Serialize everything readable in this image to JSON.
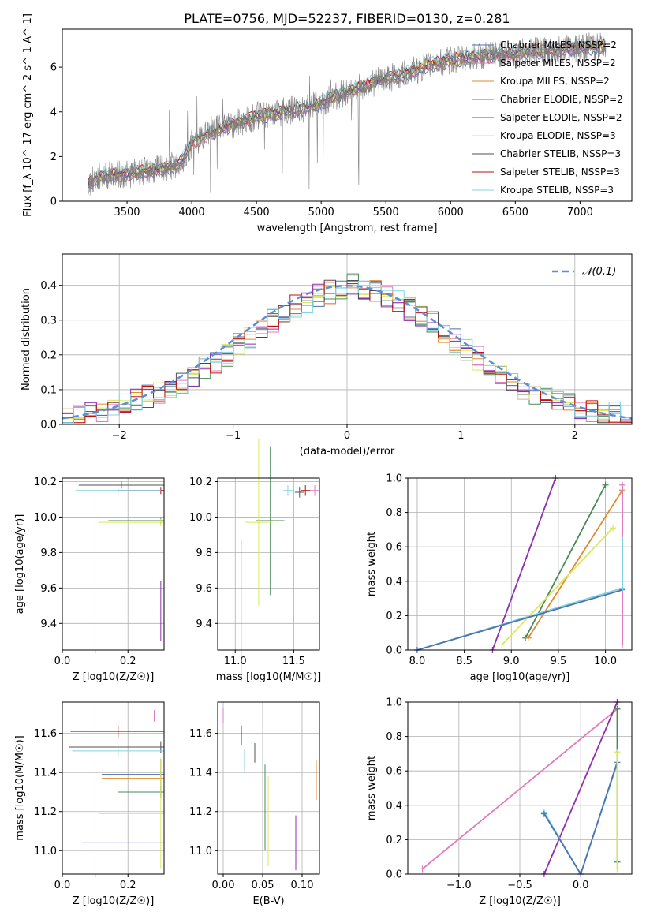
{
  "figure_title": "PLATE=0756, MJD=52237, FIBERID=0130, z=0.281",
  "colors": {
    "chabrier_miles": "#4c72b0",
    "salpeter_miles": "#e07bbf",
    "kroupa_miles": "#e08a30",
    "chabrier_elodie": "#4a8a5a",
    "salpeter_elodie": "#8e2fb0",
    "kroupa_elodie": "#d9e85a",
    "chabrier_stelib": "#505050",
    "salpeter_stelib": "#c01010",
    "kroupa_stelib": "#80d4e0",
    "data": "#808080",
    "normal": "#5b8ddb"
  },
  "chart_data": [
    {
      "type": "line",
      "xlabel": "wavelength [Angstrom, rest frame]",
      "ylabel": "Flux [f_λ 10^-17 erg cm^-2 s^-1 A^-1]",
      "xlim": [
        3000,
        7400
      ],
      "ylim": [
        0,
        7.7
      ],
      "xticks": [
        3500,
        4000,
        4500,
        5000,
        5500,
        6000,
        6500,
        7000
      ],
      "yticks": [
        0,
        2,
        4,
        6
      ],
      "legend_position": "top-right",
      "spectrum_x": [
        3200,
        3300,
        3400,
        3500,
        3600,
        3700,
        3800,
        3900,
        4000,
        4100,
        4200,
        4300,
        4400,
        4500,
        4600,
        4700,
        4800,
        4900,
        5000,
        5100,
        5200,
        5300,
        5400,
        5500,
        5600,
        5700,
        5800,
        5900,
        6000,
        6100,
        6200,
        6300,
        6400,
        6500,
        6600,
        6700,
        6800,
        6900,
        7000,
        7100,
        7200
      ],
      "spectrum_y": [
        0.8,
        1.1,
        1.2,
        1.2,
        1.3,
        1.4,
        1.5,
        1.6,
        2.6,
        2.9,
        3.2,
        3.4,
        3.6,
        3.8,
        3.9,
        4.0,
        4.1,
        4.2,
        4.4,
        4.7,
        4.9,
        5.1,
        5.3,
        5.5,
        5.6,
        5.8,
        6.0,
        6.2,
        6.3,
        6.4,
        6.5,
        6.5,
        6.6,
        6.6,
        6.7,
        6.7,
        6.8,
        6.8,
        6.9,
        6.9,
        7.0
      ],
      "series": [
        {
          "name": "Chabrier MILES, N_SSP=2",
          "color_key": "chabrier_miles"
        },
        {
          "name": "Salpeter MILES, N_SSP=2",
          "color_key": "salpeter_miles"
        },
        {
          "name": "Kroupa MILES, N_SSP=2",
          "color_key": "kroupa_miles"
        },
        {
          "name": "Chabrier ELODIE, N_SSP=2",
          "color_key": "chabrier_elodie"
        },
        {
          "name": "Salpeter ELODIE, N_SSP=2",
          "color_key": "salpeter_elodie"
        },
        {
          "name": "Kroupa ELODIE, N_SSP=3",
          "color_key": "kroupa_elodie"
        },
        {
          "name": "Chabrier STELIB, N_SSP=3",
          "color_key": "chabrier_stelib"
        },
        {
          "name": "Salpeter STELIB, N_SSP=3",
          "color_key": "salpeter_stelib"
        },
        {
          "name": "Kroupa STELIB, N_SSP=3",
          "color_key": "kroupa_stelib"
        }
      ]
    },
    {
      "type": "line",
      "xlabel": "(data-model)/error",
      "ylabel": "Normed distribution",
      "xlim": [
        -2.5,
        2.5
      ],
      "ylim": [
        0,
        0.49
      ],
      "xticks": [
        -2,
        -1,
        0,
        1,
        2
      ],
      "yticks": [
        0.0,
        0.1,
        0.2,
        0.3,
        0.4
      ],
      "legend": "𝒩(0,1)",
      "legend_position": "top-right",
      "hist_edges_step": 0.1,
      "hist_base": [
        0.02,
        0.03,
        0.04,
        0.04,
        0.05,
        0.06,
        0.07,
        0.08,
        0.09,
        0.1,
        0.12,
        0.14,
        0.16,
        0.18,
        0.2,
        0.23,
        0.25,
        0.27,
        0.3,
        0.32,
        0.34,
        0.35,
        0.37,
        0.38,
        0.39,
        0.4,
        0.39,
        0.38,
        0.37,
        0.35,
        0.33,
        0.31,
        0.29,
        0.26,
        0.24,
        0.21,
        0.19,
        0.16,
        0.14,
        0.12,
        0.1,
        0.09,
        0.08,
        0.07,
        0.06,
        0.05,
        0.04,
        0.03,
        0.03,
        0.02
      ]
    },
    {
      "type": "scatter",
      "xlabel": "Z [log10(Z/Z☉)]",
      "ylabel": "age [log10(age/yr)]",
      "xlim": [
        0.0,
        0.31
      ],
      "ylim": [
        9.25,
        10.22
      ],
      "xticks": [
        0.0,
        0.1,
        0.2
      ],
      "xtick_labels": [
        "0.0",
        "",
        "0.2"
      ],
      "yticks": [
        9.4,
        9.6,
        9.8,
        10.0,
        10.2
      ],
      "points": [
        {
          "key": "chabrier_stelib",
          "x": 0.18,
          "y": 10.18
        },
        {
          "key": "salpeter_stelib",
          "x": 0.3,
          "y": 10.15
        },
        {
          "key": "kroupa_stelib",
          "x": 0.17,
          "y": 10.15
        },
        {
          "key": "chabrier_elodie",
          "x": 0.3,
          "y": 9.98
        },
        {
          "key": "kroupa_elodie",
          "x": 0.3,
          "y": 9.97
        },
        {
          "key": "salpeter_elodie",
          "x": 0.3,
          "y": 9.47
        }
      ]
    },
    {
      "type": "scatter",
      "xlabel": "mass [log10(M/M☉)]",
      "ylabel": "",
      "xlim": [
        10.85,
        11.72
      ],
      "ylim": [
        9.25,
        10.22
      ],
      "xticks": [
        11.0,
        11.5
      ],
      "yticks": [
        9.4,
        9.6,
        9.8,
        10.0,
        10.2
      ],
      "points": [
        {
          "key": "salpeter_stelib",
          "x": 11.6,
          "y": 10.15
        },
        {
          "key": "salpeter_miles",
          "x": 11.68,
          "y": 10.15
        },
        {
          "key": "chabrier_stelib",
          "x": 11.55,
          "y": 10.14
        },
        {
          "key": "kroupa_stelib",
          "x": 11.45,
          "y": 10.15
        },
        {
          "key": "chabrier_elodie",
          "x": 11.3,
          "y": 9.98
        },
        {
          "key": "kroupa_elodie",
          "x": 11.2,
          "y": 9.97
        },
        {
          "key": "salpeter_elodie",
          "x": 11.05,
          "y": 9.47
        }
      ]
    },
    {
      "type": "line",
      "xlabel": "age [log10(age/yr)]",
      "ylabel": "mass weight",
      "xlim": [
        7.9,
        10.28
      ],
      "ylim": [
        0,
        1
      ],
      "xticks": [
        8.0,
        8.5,
        9.0,
        9.5,
        10.0
      ],
      "yticks": [
        0.0,
        0.2,
        0.4,
        0.6,
        0.8,
        1.0
      ],
      "lines": [
        {
          "key": "salpeter_elodie",
          "x": [
            8.8,
            9.47
          ],
          "y": [
            0.0,
            1.0
          ]
        },
        {
          "key": "chabrier_elodie",
          "x": [
            9.15,
            10.0
          ],
          "y": [
            0.07,
            0.96
          ]
        },
        {
          "key": "kroupa_miles",
          "x": [
            9.18,
            10.18
          ],
          "y": [
            0.07,
            0.93
          ]
        },
        {
          "key": "kroupa_elodie",
          "x": [
            8.9,
            10.08
          ],
          "y": [
            0.03,
            0.71
          ]
        },
        {
          "key": "kroupa_stelib",
          "x": [
            8.0,
            10.18
          ],
          "y": [
            0.0,
            0.36
          ]
        },
        {
          "key": "chabrier_miles",
          "x": [
            8.0,
            10.18
          ],
          "y": [
            0.0,
            0.35
          ]
        },
        {
          "key": "salpeter_miles",
          "x": [
            10.18,
            10.18
          ],
          "y": [
            0.03,
            0.96
          ]
        },
        {
          "key": "kroupa_stelib",
          "x": [
            10.18,
            10.18
          ],
          "y": [
            0.36,
            0.64
          ]
        }
      ]
    },
    {
      "type": "scatter",
      "xlabel": "Z [log10(Z/Z☉)]",
      "ylabel": "mass [log10(M/M☉)]",
      "xlim": [
        0.0,
        0.31
      ],
      "ylim": [
        10.88,
        11.76
      ],
      "xticks": [
        0.0,
        0.1,
        0.2
      ],
      "xtick_labels": [
        "0.0",
        "",
        "0.2"
      ],
      "yticks": [
        11.0,
        11.2,
        11.4,
        11.6
      ],
      "points": [
        {
          "key": "salpeter_miles",
          "x": 0.28,
          "y": 11.69
        },
        {
          "key": "salpeter_stelib",
          "x": 0.17,
          "y": 11.61
        },
        {
          "key": "chabrier_stelib",
          "x": 0.3,
          "y": 11.53
        },
        {
          "key": "kroupa_stelib",
          "x": 0.17,
          "y": 11.51
        },
        {
          "key": "chabrier_miles",
          "x": 0.3,
          "y": 11.39
        },
        {
          "key": "kroupa_miles",
          "x": 0.3,
          "y": 11.37
        },
        {
          "key": "chabrier_elodie",
          "x": 0.3,
          "y": 11.3
        },
        {
          "key": "kroupa_elodie",
          "x": 0.3,
          "y": 11.19
        },
        {
          "key": "salpeter_elodie",
          "x": 0.3,
          "y": 11.04
        }
      ]
    },
    {
      "type": "scatter",
      "xlabel": "E(B-V)",
      "ylabel": "",
      "xlim": [
        -0.007,
        0.122
      ],
      "ylim": [
        10.88,
        11.76
      ],
      "xticks": [
        0.0,
        0.05,
        0.1
      ],
      "xtick_labels": [
        "0.00",
        "0.05",
        "0.10"
      ],
      "yticks": [
        11.0,
        11.2,
        11.4,
        11.6
      ],
      "points": [
        {
          "key": "salpeter_miles",
          "x": 0.0,
          "y": 11.69
        },
        {
          "key": "salpeter_stelib",
          "x": 0.023,
          "y": 11.59
        },
        {
          "key": "kroupa_stelib",
          "x": 0.027,
          "y": 11.46
        },
        {
          "key": "chabrier_stelib",
          "x": 0.04,
          "y": 11.5
        },
        {
          "key": "chabrier_elodie",
          "x": 0.053,
          "y": 11.22
        },
        {
          "key": "kroupa_elodie",
          "x": 0.057,
          "y": 11.15
        },
        {
          "key": "salpeter_elodie",
          "x": 0.092,
          "y": 11.04
        },
        {
          "key": "kroupa_miles",
          "x": 0.118,
          "y": 11.36
        }
      ]
    },
    {
      "type": "line",
      "xlabel": "Z [log10(Z/Z☉)]",
      "ylabel": "mass weight",
      "xlim": [
        -1.42,
        0.42
      ],
      "ylim": [
        0,
        1
      ],
      "xticks": [
        -1.0,
        -0.5,
        0.0
      ],
      "yticks": [
        0.0,
        0.2,
        0.4,
        0.6,
        0.8,
        1.0
      ],
      "lines": [
        {
          "key": "salpeter_miles",
          "x": [
            -1.3,
            0.3
          ],
          "y": [
            0.03,
            0.96
          ]
        },
        {
          "key": "salpeter_elodie",
          "x": [
            -0.3,
            0.3
          ],
          "y": [
            0.0,
            1.0
          ]
        },
        {
          "key": "kroupa_stelib",
          "x": [
            -0.3,
            0.0,
            0.3
          ],
          "y": [
            0.36,
            0.0,
            0.64
          ]
        },
        {
          "key": "chabrier_miles",
          "x": [
            -0.3,
            0.0,
            0.3
          ],
          "y": [
            0.35,
            0.0,
            0.65
          ]
        },
        {
          "key": "chabrier_elodie",
          "x": [
            0.3,
            0.3
          ],
          "y": [
            0.07,
            0.96
          ]
        },
        {
          "key": "kroupa_elodie",
          "x": [
            0.3,
            0.3
          ],
          "y": [
            0.03,
            0.71
          ]
        }
      ]
    }
  ]
}
